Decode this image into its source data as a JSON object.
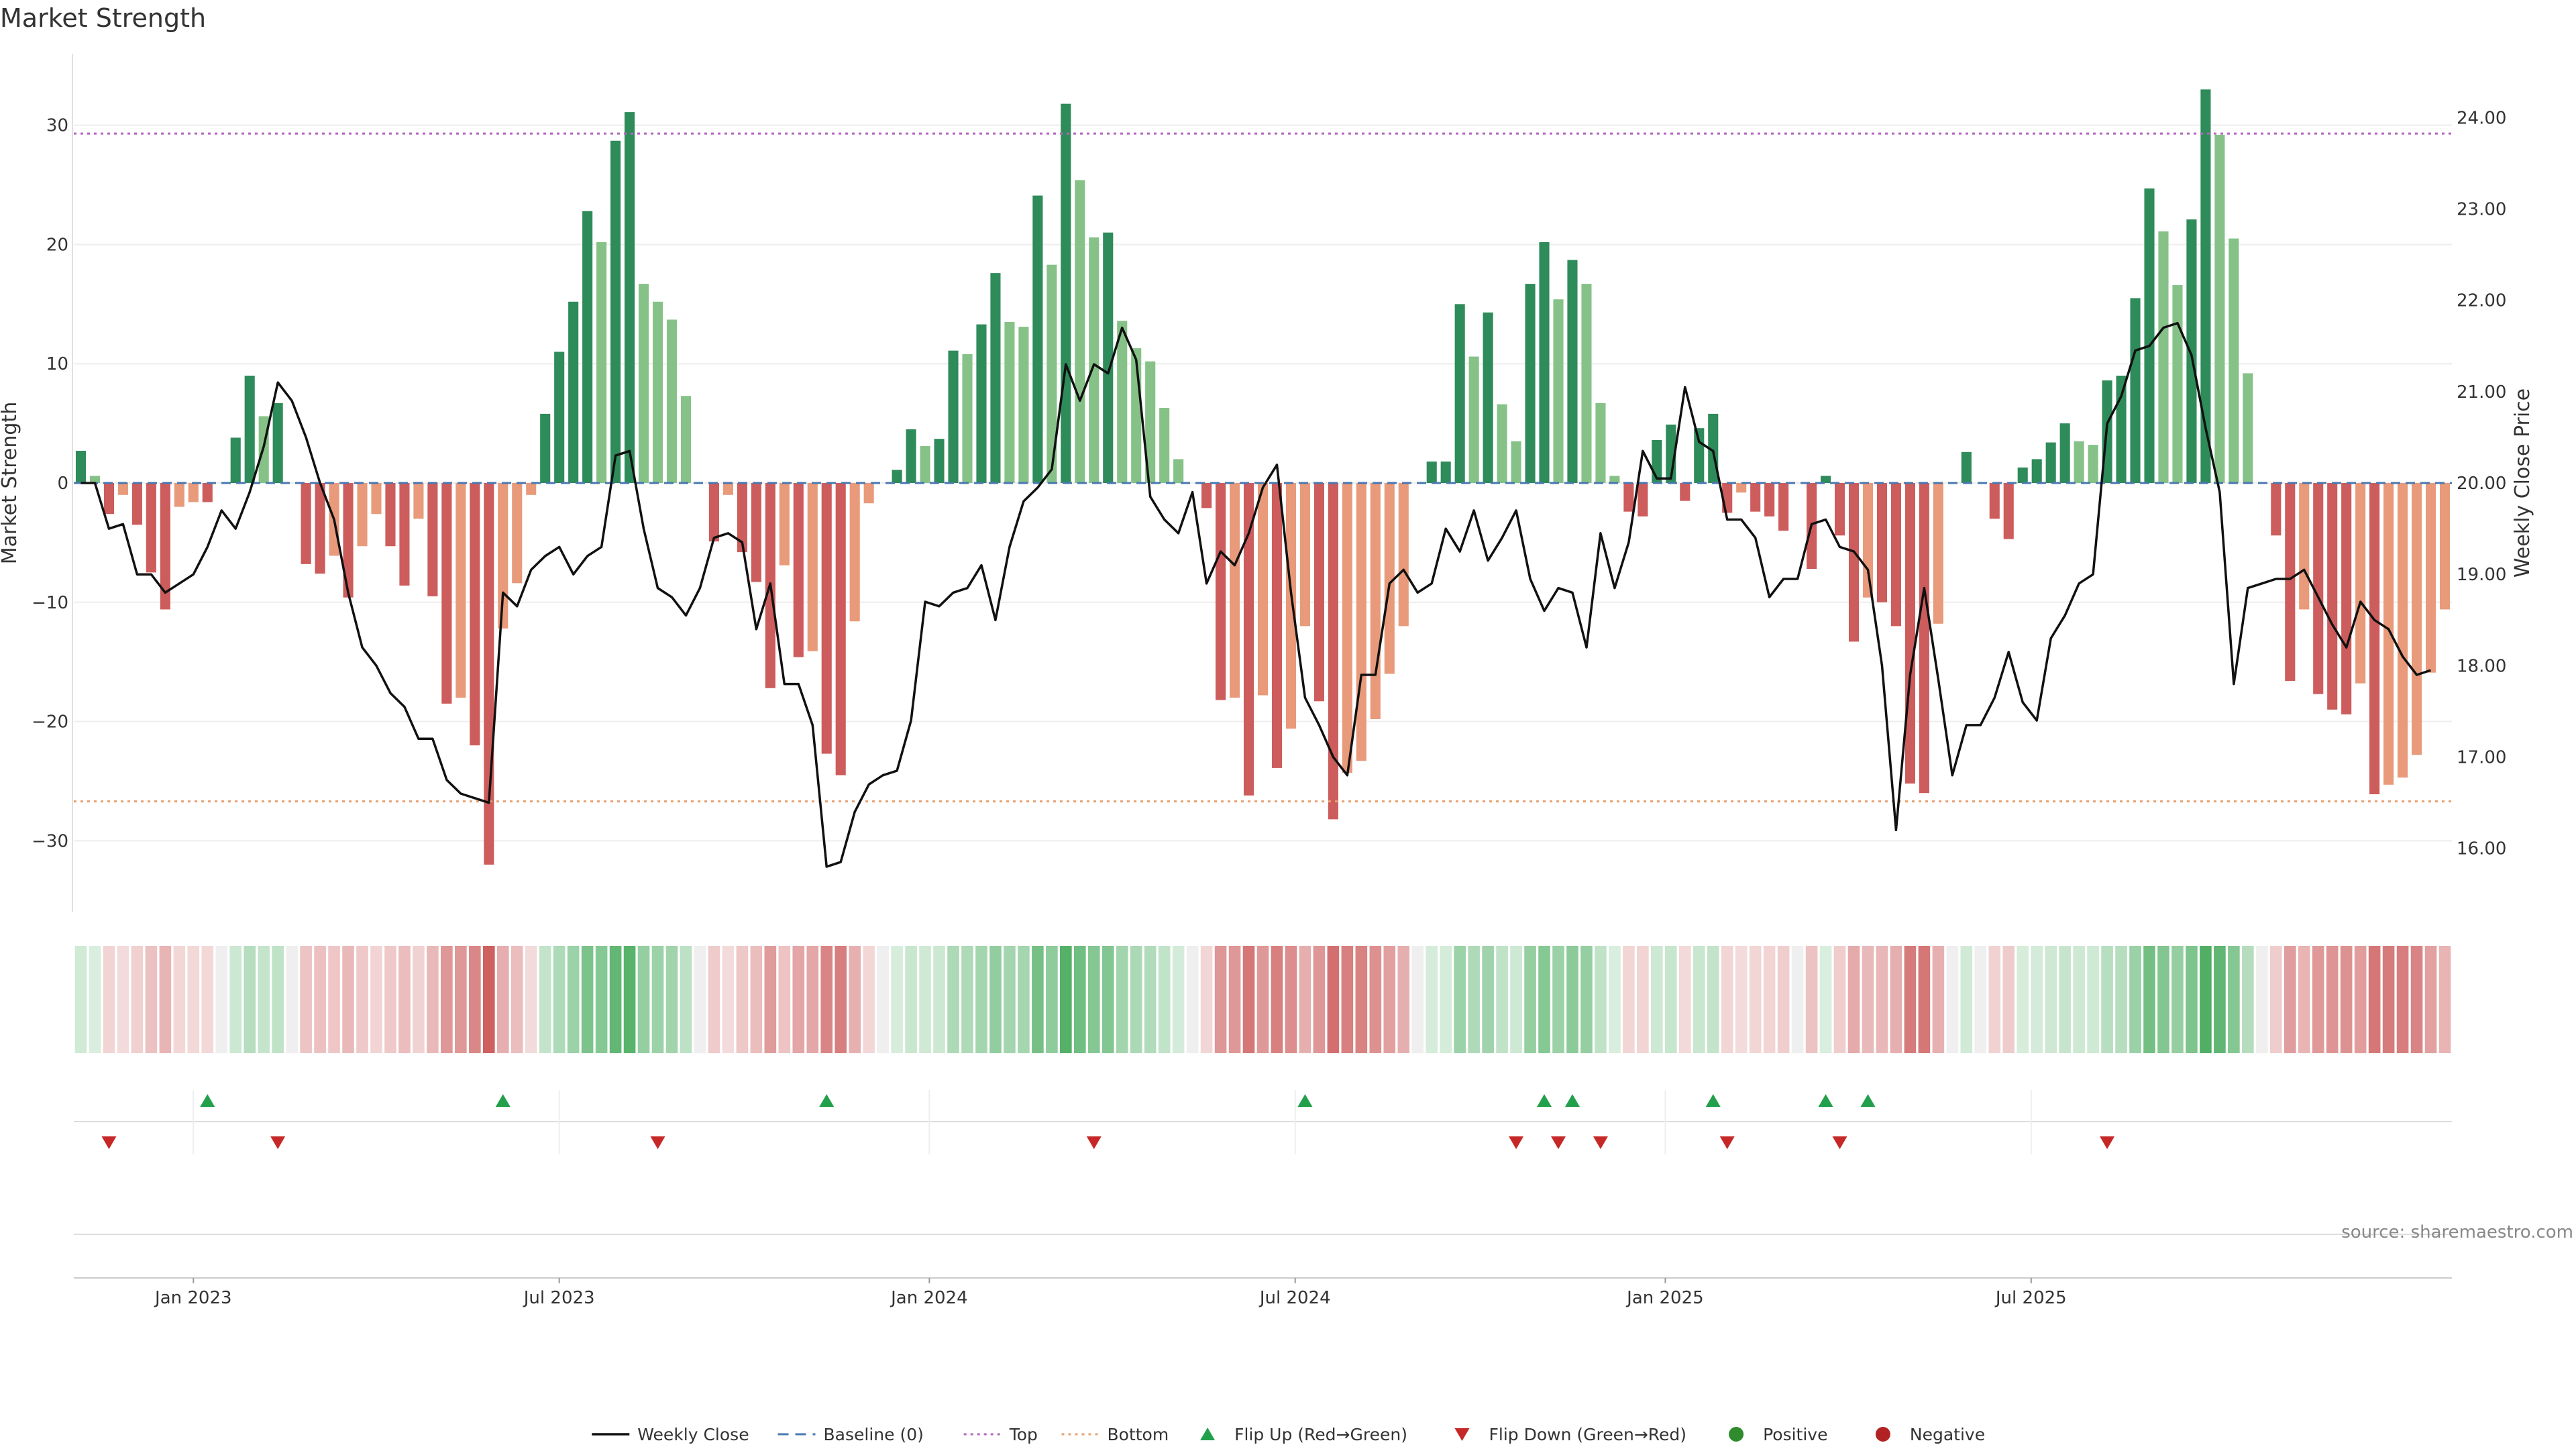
{
  "title": "Market Strength",
  "source": "source: sharemaestro.com",
  "colors": {
    "strong_green": "#2e8b5a",
    "light_green": "#86c287",
    "strong_red": "#cd5c5c",
    "light_red": "#e89a7a",
    "price_line": "#111111",
    "baseline": "#4a78b0",
    "top": "#b565c0",
    "bottom": "#e8a070",
    "flip_up": "#22a04b",
    "flip_down": "#c62828",
    "positive": "#2e8b2e",
    "negative": "#b22222"
  },
  "legend": [
    {
      "label": "Weekly Close",
      "kind": "line",
      "color": "#111111"
    },
    {
      "label": "Baseline (0)",
      "kind": "dash",
      "color": "#4a78b0"
    },
    {
      "label": "Top",
      "kind": "dot",
      "color": "#b565c0"
    },
    {
      "label": "Bottom",
      "kind": "dot",
      "color": "#e8a070"
    },
    {
      "label": "Flip Up (Red→Green)",
      "kind": "tri-up",
      "color": "#22a04b"
    },
    {
      "label": "Flip Down (Green→Red)",
      "kind": "tri-down",
      "color": "#c62828"
    },
    {
      "label": "Positive",
      "kind": "circle",
      "color": "#2e8b2e"
    },
    {
      "label": "Negative",
      "kind": "circle",
      "color": "#b22222"
    }
  ],
  "chart_data": {
    "type": "bar",
    "title": "Market Strength",
    "ylabel": "Market Strength",
    "y2label": "Weekly Close Price",
    "ylim": [
      -36,
      36
    ],
    "y2lim": [
      15.3,
      24.7
    ],
    "yticks": [
      30,
      20,
      10,
      0,
      -10,
      -20,
      -30
    ],
    "y2ticks": [
      "24.00",
      "23.00",
      "22.00",
      "21.00",
      "20.00",
      "19.00",
      "18.00",
      "17.00",
      "16.00"
    ],
    "xticks": [
      {
        "label": "Jan 2023",
        "week": 8.5
      },
      {
        "label": "Jul 2023",
        "week": 34.5
      },
      {
        "label": "Jan 2024",
        "week": 60.8
      },
      {
        "label": "Jul 2024",
        "week": 86.8
      },
      {
        "label": "Jan 2025",
        "week": 113.1
      },
      {
        "label": "Jul 2025",
        "week": 139.1
      }
    ],
    "top_level": 29.3,
    "bottom_level": -26.7,
    "baseline": 0,
    "grid": true,
    "legend_position": "bottom",
    "strength": [
      2.7,
      0.6,
      -2.6,
      -1.0,
      -3.5,
      -7.5,
      -10.6,
      -2.0,
      -1.6,
      -1.6,
      0,
      3.8,
      9.0,
      5.6,
      6.7,
      0,
      -6.8,
      -7.6,
      -6.1,
      -9.6,
      -5.3,
      -2.6,
      -5.3,
      -8.6,
      -3.0,
      -9.5,
      -18.5,
      -18.0,
      -22.0,
      -32.0,
      -12.2,
      -8.4,
      -1.0,
      5.8,
      11.0,
      15.2,
      22.8,
      20.2,
      28.7,
      31.1,
      16.7,
      15.2,
      13.7,
      7.3,
      0,
      -4.9,
      -1.0,
      -5.8,
      -8.3,
      -17.2,
      -6.9,
      -14.6,
      -14.1,
      -22.7,
      -24.5,
      -11.6,
      -1.7,
      0,
      1.1,
      4.5,
      3.1,
      3.7,
      11.1,
      10.8,
      13.3,
      17.6,
      13.5,
      13.1,
      24.1,
      18.3,
      31.8,
      25.4,
      20.6,
      21.0,
      13.6,
      11.3,
      10.2,
      6.3,
      2.0,
      0,
      -2.1,
      -18.2,
      -18.0,
      -26.2,
      -17.8,
      -23.9,
      -20.6,
      -12.0,
      -18.3,
      -28.2,
      -24.3,
      -23.3,
      -19.8,
      -16.0,
      -12.0,
      0,
      1.8,
      1.8,
      15.0,
      10.6,
      14.3,
      6.6,
      3.5,
      16.7,
      20.2,
      15.4,
      18.7,
      16.7,
      6.7,
      0.6,
      -2.4,
      -2.8,
      3.6,
      4.9,
      -1.5,
      4.6,
      5.8,
      -2.5,
      -0.8,
      -2.4,
      -2.8,
      -4.0,
      0,
      -7.2,
      0.6,
      -4.4,
      -13.3,
      -9.6,
      -10.0,
      -12.0,
      -25.2,
      -26.0,
      -11.8,
      0,
      2.6,
      0,
      -3.0,
      -4.7,
      1.3,
      2.0,
      3.4,
      5.0,
      3.5,
      3.2,
      8.6,
      9.0,
      15.5,
      24.7,
      21.1,
      16.6,
      22.1,
      33.0,
      29.2,
      20.5,
      9.2,
      0,
      -4.4,
      -16.6,
      -10.6,
      -17.7,
      -19.0,
      -19.4,
      -16.8,
      -26.1,
      -25.3,
      -24.7,
      -22.8,
      -15.9,
      -10.6
    ],
    "weekly_close": [
      20.0,
      20.0,
      19.5,
      19.55,
      19.0,
      19.0,
      18.8,
      18.9,
      19.0,
      19.3,
      19.7,
      19.5,
      19.9,
      20.4,
      21.1,
      20.9,
      20.5,
      20.0,
      19.6,
      18.8,
      18.2,
      18.0,
      17.7,
      17.55,
      17.2,
      17.2,
      16.75,
      16.6,
      16.55,
      16.5,
      18.8,
      18.65,
      19.05,
      19.2,
      19.3,
      19.0,
      19.2,
      19.3,
      20.3,
      20.35,
      19.5,
      18.85,
      18.75,
      18.55,
      18.85,
      19.4,
      19.45,
      19.35,
      18.4,
      18.9,
      17.8,
      17.8,
      17.35,
      15.8,
      15.85,
      16.4,
      16.7,
      16.8,
      16.85,
      17.4,
      18.7,
      18.65,
      18.8,
      18.85,
      19.1,
      18.5,
      19.3,
      19.8,
      19.95,
      20.15,
      21.3,
      20.9,
      21.3,
      21.2,
      21.7,
      21.35,
      19.85,
      19.6,
      19.45,
      19.9,
      18.9,
      19.25,
      19.1,
      19.45,
      19.95,
      20.2,
      18.8,
      17.65,
      17.35,
      17.0,
      16.8,
      17.9,
      17.9,
      18.9,
      19.05,
      18.8,
      18.9,
      19.5,
      19.25,
      19.7,
      19.15,
      19.4,
      19.7,
      18.95,
      18.6,
      18.85,
      18.8,
      18.2,
      19.45,
      18.85,
      19.35,
      20.35,
      20.05,
      20.05,
      21.05,
      20.45,
      20.35,
      19.6,
      19.6,
      19.4,
      18.75,
      18.95,
      18.95,
      19.55,
      19.6,
      19.3,
      19.25,
      19.05,
      18.0,
      16.2,
      17.9,
      18.85,
      17.85,
      16.8,
      17.35,
      17.35,
      17.65,
      18.15,
      17.6,
      17.4,
      18.3,
      18.55,
      18.9,
      19.0,
      20.65,
      20.95,
      21.45,
      21.5,
      21.7,
      21.75,
      21.4,
      20.6,
      19.9,
      17.8,
      18.85,
      18.9,
      18.95,
      18.95,
      19.05,
      18.75,
      18.45,
      18.2,
      18.7,
      18.5,
      18.4,
      18.1,
      17.9,
      17.95
    ]
  },
  "flips": {
    "up_weeks": [
      9,
      30,
      53,
      87,
      104,
      106,
      116,
      124,
      127
    ],
    "down_weeks": [
      2,
      14,
      41,
      72,
      102,
      105,
      108,
      117,
      125,
      144
    ]
  }
}
